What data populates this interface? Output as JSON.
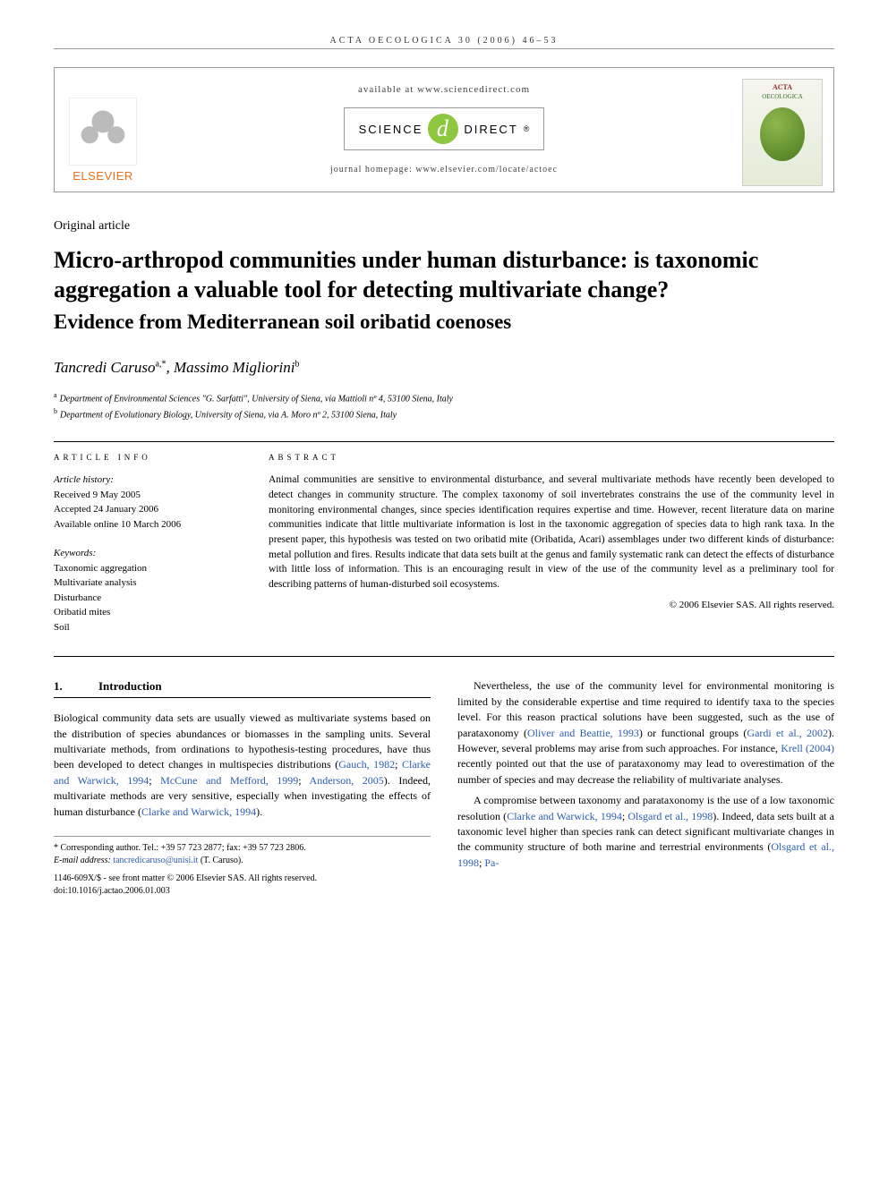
{
  "running_header": "ACTA OECOLOGICA 30 (2006) 46–53",
  "top": {
    "available_at": "available at www.sciencedirect.com",
    "scidirect_left": "SCIENCE",
    "scidirect_d": "d",
    "scidirect_right": "DIRECT",
    "scidirect_reg": "®",
    "journal_home": "journal homepage: www.elsevier.com/locate/actoec",
    "elsevier": "ELSEVIER",
    "cover_title": "ACTA",
    "cover_sub": "OECOLOGICA"
  },
  "article_type": "Original article",
  "title": "Micro-arthropod communities under human disturbance: is taxonomic aggregation a valuable tool for detecting multivariate change?",
  "subtitle": "Evidence from Mediterranean soil oribatid coenoses",
  "authors_html": "Tancredi Caruso",
  "author_sup1": "a,*",
  "author_sep": ", ",
  "author2": "Massimo Migliorini",
  "author_sup2": "b",
  "affiliations": {
    "a": "Department of Environmental Sciences \"G. Sarfatti\", University of Siena, via Mattioli nº 4, 53100 Siena, Italy",
    "b": "Department of Evolutionary Biology, University of Siena, via A. Moro nº 2, 53100 Siena, Italy"
  },
  "info": {
    "label_info": "ARTICLE INFO",
    "label_abs": "ABSTRACT",
    "history_hdr": "Article history:",
    "history": [
      "Received 9 May 2005",
      "Accepted 24 January 2006",
      "Available online 10 March 2006"
    ],
    "keywords_hdr": "Keywords:",
    "keywords": [
      "Taxonomic aggregation",
      "Multivariate analysis",
      "Disturbance",
      "Oribatid mites",
      "Soil"
    ]
  },
  "abstract": "Animal communities are sensitive to environmental disturbance, and several multivariate methods have recently been developed to detect changes in community structure. The complex taxonomy of soil invertebrates constrains the use of the community level in monitoring environmental changes, since species identification requires expertise and time. However, recent literature data on marine communities indicate that little multivariate information is lost in the taxonomic aggregation of species data to high rank taxa. In the present paper, this hypothesis was tested on two oribatid mite (Oribatida, Acari) assemblages under two different kinds of disturbance: metal pollution and fires. Results indicate that data sets built at the genus and family systematic rank can detect the effects of disturbance with little loss of information. This is an encouraging result in view of the use of the community level as a preliminary tool for describing patterns of human-disturbed soil ecosystems.",
  "copyright": "© 2006 Elsevier SAS. All rights reserved.",
  "section1_num": "1.",
  "section1_title": "Introduction",
  "col1": {
    "p1": "Biological community data sets are usually viewed as multivariate systems based on the distribution of species abundances or biomasses in the sampling units. Several multivariate methods, from ordinations to hypothesis-testing procedures, have thus been developed to detect changes in multispecies distributions (",
    "ref1": "Gauch, 1982",
    "s1": "; ",
    "ref2": "Clarke and Warwick, 1994",
    "s2": "; ",
    "ref3": "McCune and Mefford, 1999",
    "s3": "; ",
    "ref4": "Anderson, 2005",
    "p1b": "). Indeed, multivariate methods are very sensitive, especially when investigating the effects of human disturbance (",
    "ref5": "Clarke and Warwick, 1994",
    "p1c": ")."
  },
  "col2": {
    "p1a": "Nevertheless, the use of the community level for environmental monitoring is limited by the considerable expertise and time required to identify taxa to the species level. For this reason practical solutions have been suggested, such as the use of parataxonomy (",
    "ref1": "Oliver and Beattie, 1993",
    "p1b": ") or functional groups (",
    "ref2": "Gardi et al., 2002",
    "p1c": "). However, several problems may arise from such approaches. For instance, ",
    "ref3": "Krell (2004)",
    "p1d": " recently pointed out that the use of parataxonomy may lead to overestimation of the number of species and may decrease the reliability of multivariate analyses.",
    "p2a": "A compromise between taxonomy and parataxonomy is the use of a low taxonomic resolution (",
    "ref4": "Clarke and Warwick, 1994",
    "s1": "; ",
    "ref5": "Olsgard et al., 1998",
    "p2b": "). Indeed, data sets built at a taxonomic level higher than species rank can detect significant multivariate changes in the community structure of both marine and terrestrial environments (",
    "ref6": "Olsgard et al., 1998",
    "s2": "; ",
    "ref7": "Pa-"
  },
  "footnote": {
    "corr_label": "* Corresponding author. Tel.: +39 57 723 2877; fax: +39 57 723 2806.",
    "email_label": "E-mail address:",
    "email": "tancredicaruso@unisi.it",
    "email_paren": "(T. Caruso)."
  },
  "footer": {
    "line1": "1146-609X/$ - see front matter © 2006 Elsevier SAS. All rights reserved.",
    "line2": "doi:10.1016/j.actao.2006.01.003"
  },
  "colors": {
    "link": "#2a5db0",
    "elsevier_orange": "#e9711c",
    "scidirect_green": "#8dc63f"
  }
}
